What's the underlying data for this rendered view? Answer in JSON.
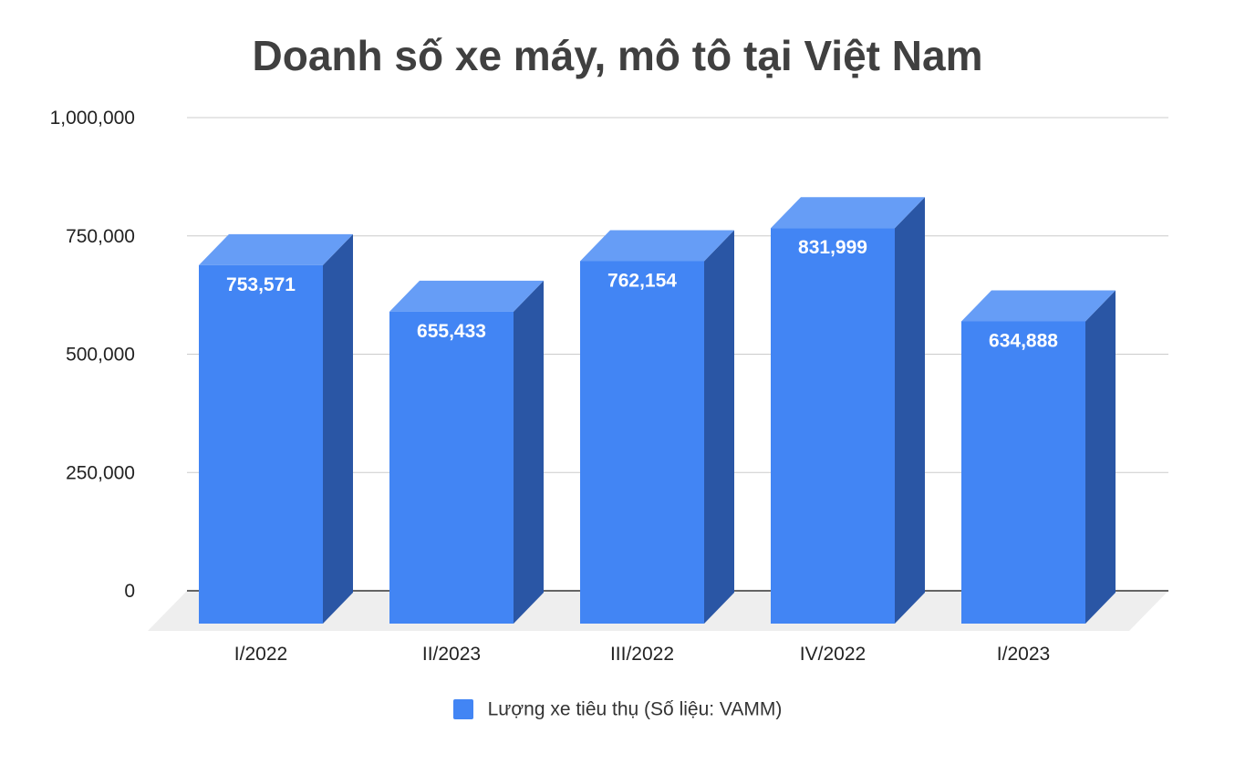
{
  "chart_data": {
    "type": "bar",
    "title": "Doanh số xe máy, mô tô tại Việt Nam",
    "categories": [
      "I/2022",
      "II/2023",
      "III/2022",
      "IV/2022",
      "I/2023"
    ],
    "series": [
      {
        "name": "Lượng xe tiêu thụ (Số liệu: VAMM)",
        "values": [
          753571,
          655433,
          762154,
          831999,
          634888
        ],
        "labels": [
          "753,571",
          "655,433",
          "762,154",
          "831,999",
          "634,888"
        ]
      }
    ],
    "yticks": [
      0,
      250000,
      500000,
      750000,
      1000000
    ],
    "ytick_labels": [
      "0",
      "250,000",
      "500,000",
      "750,000",
      "1,000,000"
    ],
    "ylim": [
      0,
      1000000
    ],
    "grid": true,
    "legend_position": "bottom",
    "style": "3d",
    "colors": {
      "front": "#4285f4",
      "top": "#669df6",
      "side": "#2a56a5",
      "floor": "#eeeeee",
      "grid": "#cccccc",
      "axis": "#333333"
    }
  }
}
